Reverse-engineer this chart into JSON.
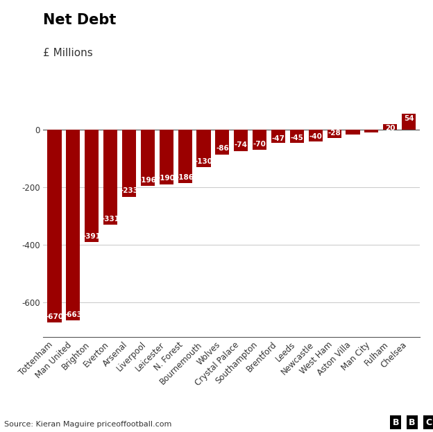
{
  "title": "Net Debt",
  "subtitle": "£ Millions",
  "source": "Source: Kieran Maguire priceoffootball.com",
  "categories": [
    "Tottenham",
    "Man United",
    "Brighton",
    "Everton",
    "Arsenal",
    "Liverpool",
    "Leicester",
    "N. Forest",
    "Bournemouth",
    "Wolves",
    "Crystal Palace",
    "Southampton",
    "Brentford",
    "Leeds",
    "Newcastle",
    "West Ham",
    "Aston Villa",
    "Man City",
    "Fulham",
    "Chelsea"
  ],
  "values": [
    -670,
    -663,
    -391,
    -331,
    -233,
    -196,
    -190,
    -186,
    -130,
    -86,
    -74,
    -70,
    -47,
    -45,
    -40,
    -28,
    -18,
    -10,
    20,
    54
  ],
  "bar_color": "#9b0000",
  "label_color": "#ffffff",
  "background_color": "#ffffff",
  "grid_color": "#cccccc",
  "ylim": [
    -720,
    120
  ],
  "yticks": [
    0,
    -200,
    -400,
    -600
  ],
  "title_fontsize": 15,
  "subtitle_fontsize": 11,
  "tick_fontsize": 8.5,
  "bar_label_fontsize": 7.5,
  "show_label_min_abs": 10
}
